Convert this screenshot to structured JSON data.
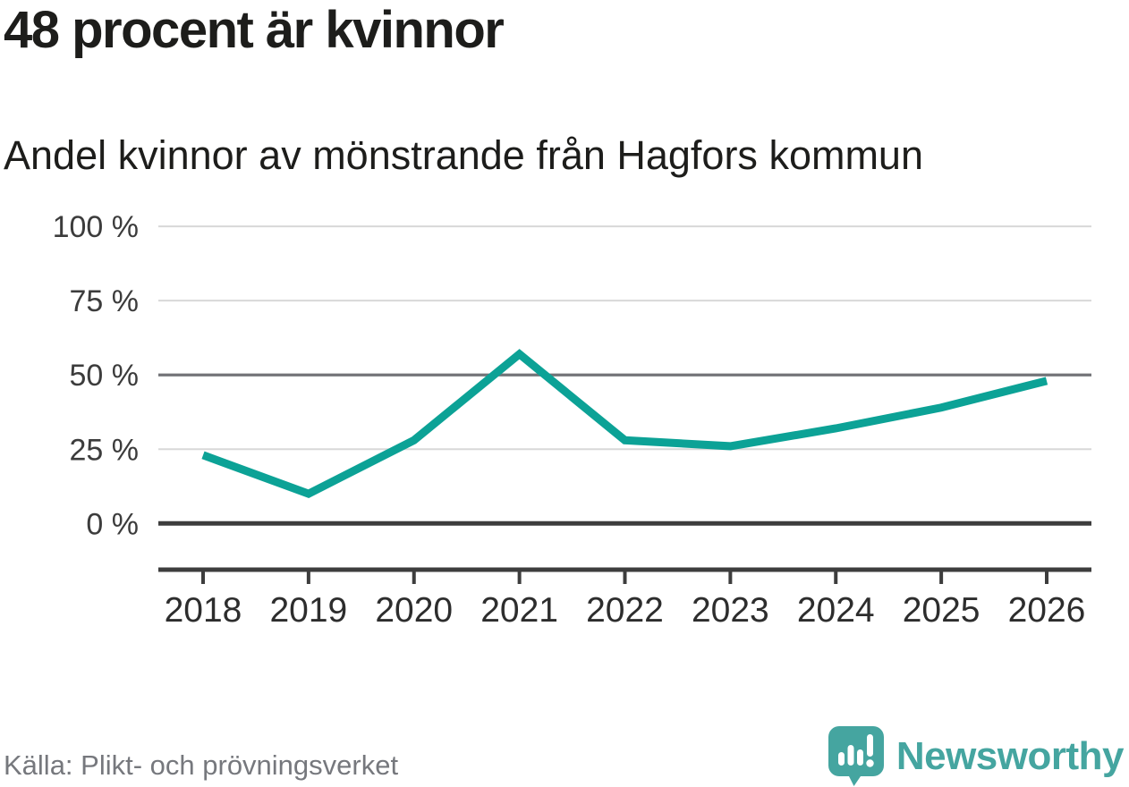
{
  "header": {
    "title": "48 procent är kvinnor",
    "subtitle": "Andel kvinnor av mönstrande från Hagfors kommun"
  },
  "chart_data": {
    "type": "line",
    "title": "48 procent är kvinnor",
    "subtitle": "Andel kvinnor av mönstrande från Hagfors kommun",
    "x": [
      2018,
      2019,
      2020,
      2021,
      2022,
      2023,
      2024,
      2025,
      2026
    ],
    "series": [
      {
        "name": "Andel kvinnor av mönstrande",
        "values": [
          23,
          10,
          28,
          57,
          28,
          26,
          32,
          39,
          48
        ]
      }
    ],
    "xlabel": "",
    "ylabel": "",
    "ylim": [
      0,
      100
    ],
    "yticks": [
      0,
      25,
      50,
      75,
      100
    ],
    "ytick_suffix": " %",
    "baseline_tick": 0,
    "highlight_tick": 50,
    "grid": "horizontal",
    "legend": "none",
    "line_color": "#0ca296"
  },
  "footer": {
    "source": "Källa: Plikt- och prövningsverket",
    "brand": "Newsworthy"
  },
  "icons": {
    "logo": "newsworthy-speech-bubble-bar-chart-exclamation"
  },
  "colors": {
    "accent": "#0ca296",
    "brand": "#45a5a0",
    "text": "#1d1d1b",
    "muted_text": "#76787d",
    "grid_light": "#d8d8d8",
    "grid_mid": "#737478",
    "axis_dark": "#3d3d3d"
  }
}
